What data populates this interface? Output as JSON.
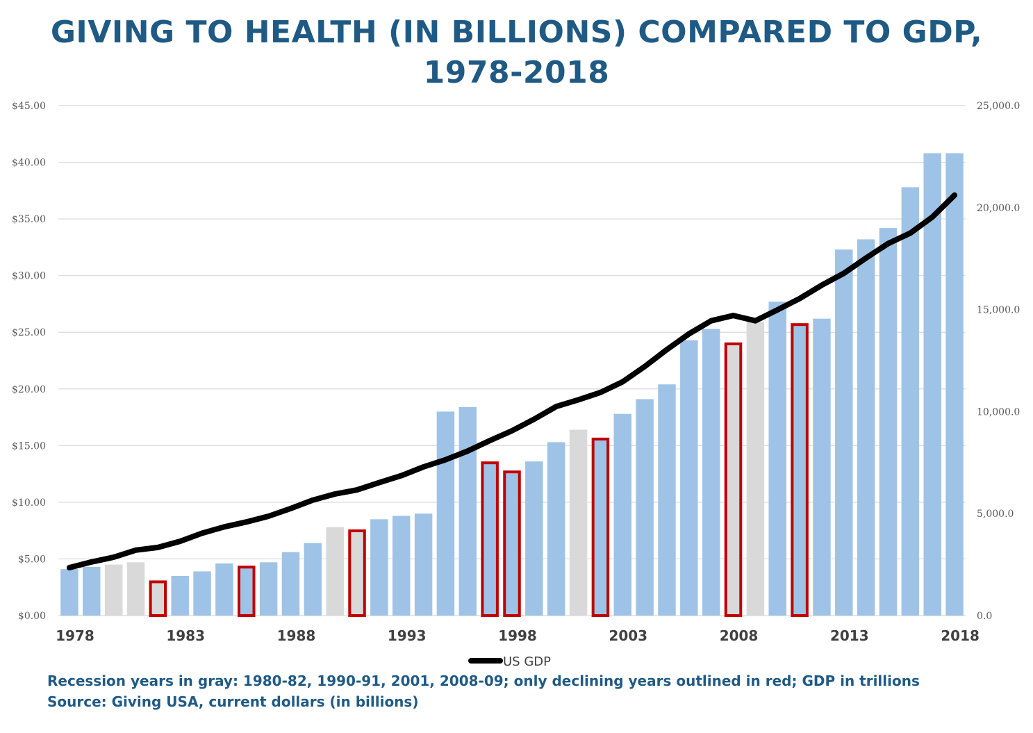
{
  "chart_data": {
    "type": "bar",
    "title_line1": "GIVING TO HEALTH (IN BILLIONS) COMPARED TO GDP,",
    "title_line2": "1978-2018",
    "years": [
      1978,
      1979,
      1980,
      1981,
      1982,
      1983,
      1984,
      1985,
      1986,
      1987,
      1988,
      1989,
      1990,
      1991,
      1992,
      1993,
      1994,
      1995,
      1996,
      1997,
      1998,
      1999,
      2000,
      2001,
      2002,
      2003,
      2004,
      2005,
      2006,
      2007,
      2008,
      2009,
      2010,
      2011,
      2012,
      2013,
      2014,
      2015,
      2016,
      2017,
      2018
    ],
    "x_tick_labels": [
      "1978",
      "1983",
      "1988",
      "1993",
      "1998",
      "2003",
      "2008",
      "2013",
      "2018"
    ],
    "series": [
      {
        "axis": "left",
        "kind": "bar",
        "values": [
          4.1,
          4.3,
          4.5,
          4.7,
          3.1,
          3.5,
          3.9,
          4.6,
          4.4,
          4.7,
          5.6,
          6.4,
          7.8,
          7.6,
          8.5,
          8.8,
          9.0,
          18.0,
          18.4,
          13.6,
          12.8,
          13.6,
          15.3,
          16.4,
          15.7,
          17.8,
          19.1,
          20.4,
          24.3,
          25.3,
          24.1,
          25.9,
          27.7,
          25.8,
          26.2,
          32.3,
          33.2,
          34.2,
          37.8,
          40.8,
          40.8
        ],
        "recession": [
          false,
          false,
          true,
          true,
          true,
          false,
          false,
          false,
          false,
          false,
          false,
          false,
          true,
          true,
          false,
          false,
          false,
          false,
          false,
          false,
          false,
          false,
          false,
          true,
          false,
          false,
          false,
          false,
          false,
          false,
          true,
          true,
          false,
          false,
          false,
          false,
          false,
          false,
          false,
          false,
          false
        ],
        "declining": [
          false,
          false,
          false,
          false,
          true,
          false,
          false,
          false,
          true,
          false,
          false,
          false,
          false,
          true,
          false,
          false,
          false,
          false,
          false,
          true,
          true,
          false,
          false,
          false,
          true,
          false,
          false,
          false,
          false,
          false,
          true,
          false,
          false,
          true,
          false,
          false,
          false,
          false,
          false,
          false,
          false
        ]
      },
      {
        "name": "US GDP",
        "axis": "right",
        "kind": "line",
        "values": [
          2350,
          2630,
          2860,
          3210,
          3340,
          3640,
          4040,
          4350,
          4590,
          4870,
          5250,
          5660,
          5960,
          6160,
          6520,
          6860,
          7290,
          7640,
          8070,
          8580,
          9060,
          9630,
          10250,
          10580,
          10940,
          11460,
          12210,
          13040,
          13810,
          14450,
          14710,
          14450,
          14990,
          15540,
          16200,
          16780,
          17530,
          18240,
          18750,
          19540,
          20610
        ]
      }
    ],
    "left_axis": {
      "ylim": [
        0,
        45
      ],
      "ticks": [
        "$0.00",
        "$5.00",
        "$10.00",
        "$15.00",
        "$20.00",
        "$25.00",
        "$30.00",
        "$35.00",
        "$40.00",
        "$45.00"
      ]
    },
    "right_axis": {
      "ylim": [
        0,
        25000
      ],
      "ticks": [
        "0.0",
        "5,000.0",
        "10,000.0",
        "15,000.0",
        "20,000.0",
        "25,000.0"
      ]
    },
    "grid": true,
    "legend_position": "bottom-center",
    "colors": {
      "bar": "#9fc3e6",
      "recession_bar": "#d9d9d9",
      "decline_outline": "#c00000",
      "gdp_line": "#000000",
      "gridline": "#d9d9d9",
      "title": "#1f5a85"
    }
  },
  "notes": {
    "line1": "Recession years in gray: 1980-82, 1990-91, 2001, 2008-09; only declining years outlined in red; GDP in trillions",
    "line2": "Source: Giving USA, current dollars (in billions)"
  }
}
